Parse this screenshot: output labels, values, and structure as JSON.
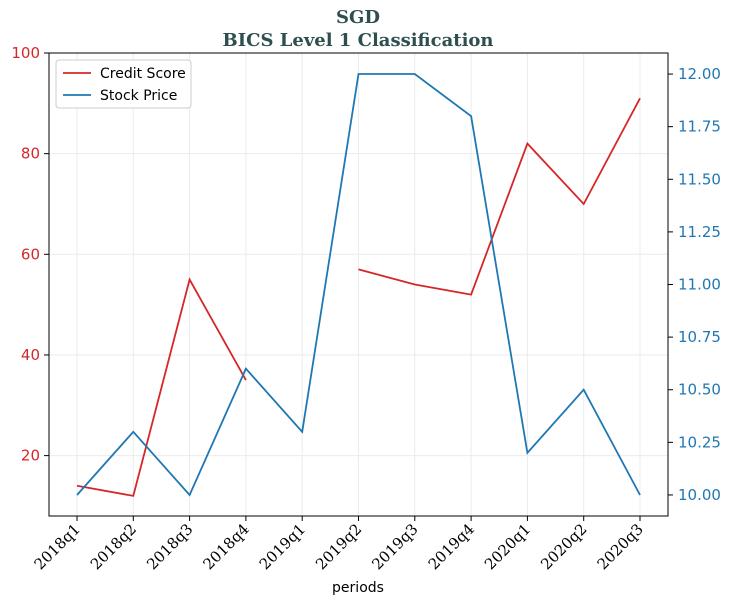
{
  "chart_data": {
    "type": "line",
    "title": "SGD",
    "subtitle": "BICS Level 1 Classification",
    "xlabel": "periods",
    "categories": [
      "2018q1",
      "2018q2",
      "2018q3",
      "2018q4",
      "2019q1",
      "2019q2",
      "2019q3",
      "2019q4",
      "2020q1",
      "2020q2",
      "2020q3"
    ],
    "left_axis": {
      "ylim": [
        8,
        100
      ],
      "ticks": [
        20,
        40,
        60,
        80,
        100
      ],
      "color": "#d62728"
    },
    "right_axis": {
      "ylim": [
        9.9,
        12.1
      ],
      "ticks": [
        "10.00",
        "10.25",
        "10.50",
        "10.75",
        "11.00",
        "11.25",
        "11.50",
        "11.75",
        "12.00"
      ],
      "color": "#1f77b4"
    },
    "grid": true,
    "legend_position": "top-left",
    "series": [
      {
        "name": "Credit Score",
        "axis": "left",
        "color": "#d62728",
        "values": [
          14,
          12,
          55,
          35,
          null,
          57,
          54,
          52,
          82,
          70,
          91
        ]
      },
      {
        "name": "Stock Price",
        "axis": "right",
        "color": "#1f77b4",
        "values": [
          10.0,
          10.3,
          10.0,
          10.6,
          10.3,
          12.0,
          12.0,
          11.8,
          10.2,
          10.5,
          10.0
        ]
      }
    ]
  }
}
